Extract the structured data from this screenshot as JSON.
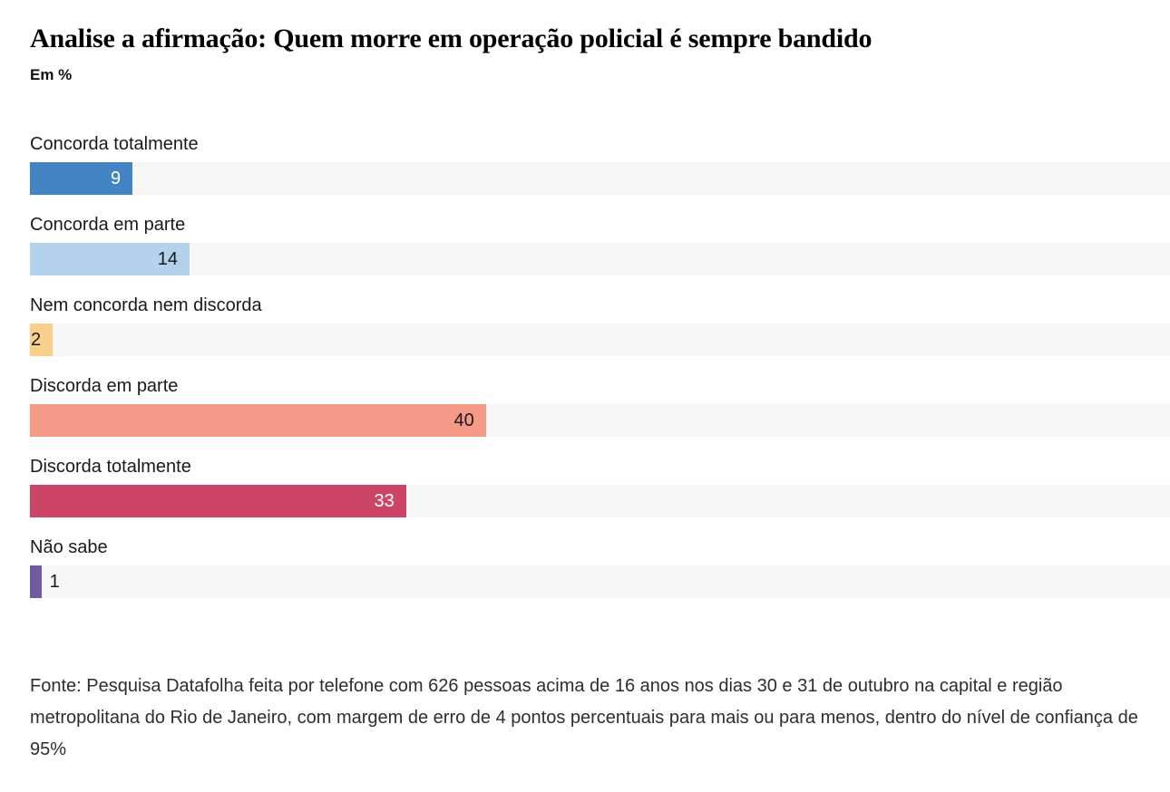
{
  "header": {
    "title": "Analise a afirmação: Quem morre em operação policial é sempre bandido",
    "subtitle": "Em %"
  },
  "chart_data": {
    "type": "bar",
    "orientation": "horizontal",
    "unit": "%",
    "title": "Analise a afirmação: Quem morre em operação policial é sempre bandido",
    "subtitle": "Em %",
    "xlim": [
      0,
      100
    ],
    "grid": false,
    "legend": false,
    "categories": [
      "Concorda totalmente",
      "Concorda em parte",
      "Nem concorda nem discorda",
      "Discorda em parte",
      "Discorda totalmente",
      "Não sabe"
    ],
    "values": [
      9,
      14,
      2,
      40,
      33,
      1
    ],
    "track_color": "#f6f6f6",
    "bars": [
      {
        "label": "Concorda totalmente",
        "value": 9,
        "color": "#4384c4",
        "value_color": "#ffffff",
        "value_position": "inside"
      },
      {
        "label": "Concorda em parte",
        "value": 14,
        "color": "#b4d2ec",
        "value_color": "#1a1a1a",
        "value_position": "inside"
      },
      {
        "label": "Nem concorda nem discorda",
        "value": 2,
        "color": "#f9cf8b",
        "value_color": "#1a1a1a",
        "value_position": "inside"
      },
      {
        "label": "Discorda em parte",
        "value": 40,
        "color": "#f59a87",
        "value_color": "#1a1a1a",
        "value_position": "inside"
      },
      {
        "label": "Discorda totalmente",
        "value": 33,
        "color": "#cc4566",
        "value_color": "#ffffff",
        "value_position": "inside"
      },
      {
        "label": "Não sabe",
        "value": 1,
        "color": "#6f5a9f",
        "value_color": "#1a1a1a",
        "value_position": "outside"
      }
    ]
  },
  "footer": {
    "source": "Fonte: Pesquisa Datafolha feita por telefone com 626 pessoas acima de 16 anos nos dias 30 e 31 de outubro na capital e região metropolitana do Rio de Janeiro, com margem de erro de 4 pontos percentuais para mais ou para menos, dentro do nível de confiança de 95%"
  }
}
